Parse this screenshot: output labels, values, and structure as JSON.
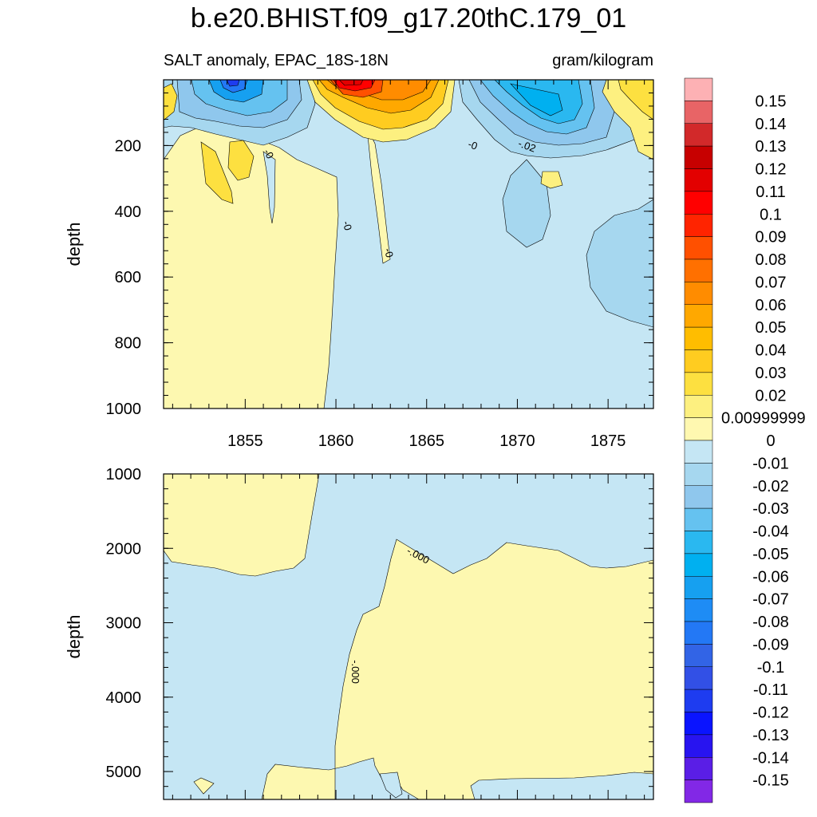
{
  "title": "b.e20.BHIST.f09_g17.20thC.179_01",
  "subtitle_left": "SALT anomaly, EPAC_18S-18N",
  "subtitle_right": "gram/kilogram",
  "chart_data": [
    {
      "type": "heatmap",
      "panel": "upper",
      "ylabel": "depth",
      "ylim": [
        0,
        1000
      ],
      "yreversed": true,
      "yticks": [
        200,
        400,
        600,
        800,
        1000
      ],
      "xlim": [
        1850.5,
        1877.5
      ],
      "xticks": [
        1855,
        1860,
        1865,
        1870,
        1875
      ],
      "contour_labels": [
        "-0",
        "-0",
        "-0",
        "-0",
        "-.02"
      ],
      "features": [
        {
          "kind": "negative-anomaly",
          "x_center": 1854.5,
          "depth_center": 30,
          "min_value": -0.12
        },
        {
          "kind": "positive-anomaly",
          "x_center": 1861.0,
          "depth_center": 30,
          "max_value": 0.11
        },
        {
          "kind": "negative-anomaly",
          "x_center": 1871.5,
          "depth_center": 100,
          "min_value": -0.06
        },
        {
          "kind": "positive-anomaly",
          "x_center": 1876.0,
          "depth_center": 60,
          "max_value": 0.03
        }
      ]
    },
    {
      "type": "heatmap",
      "panel": "lower",
      "ylabel": "depth",
      "ylim": [
        1000,
        5375
      ],
      "yreversed": true,
      "yticks": [
        1000,
        2000,
        3000,
        4000,
        5000
      ],
      "xlim": [
        1850.5,
        1877.5
      ],
      "xticks": [
        1855,
        1860,
        1865,
        1870,
        1875
      ],
      "contour_labels": [
        "-.000",
        "-.000"
      ]
    }
  ],
  "colorbar": {
    "labels": [
      "0.15",
      "0.14",
      "0.13",
      "0.12",
      "0.11",
      "0.1",
      "0.09",
      "0.08",
      "0.07",
      "0.06",
      "0.05",
      "0.04",
      "0.03",
      "0.02",
      "0.00999999",
      "0",
      "-0.01",
      "-0.02",
      "-0.03",
      "-0.04",
      "-0.05",
      "-0.06",
      "-0.07",
      "-0.08",
      "-0.09",
      "-0.1",
      "-0.11",
      "-0.12",
      "-0.13",
      "-0.14",
      "-0.15"
    ],
    "colors": [
      "#fdb1b4",
      "#e86466",
      "#d2292a",
      "#c70000",
      "#e30000",
      "#ff0000",
      "#ff2400",
      "#ff5000",
      "#ff7000",
      "#ff8c00",
      "#ffa800",
      "#ffbd00",
      "#ffcc20",
      "#fde040",
      "#fdf080",
      "#fff8b0",
      "#c5e6f4",
      "#a6d7ef",
      "#8fc7ed",
      "#65c2f0",
      "#2ab8f0",
      "#00b0f0",
      "#16a0f0",
      "#1e8cf5",
      "#2378f5",
      "#3264e6",
      "#3250e6",
      "#1e3cf0",
      "#0a14ff",
      "#2814f0",
      "#5a1ee6",
      "#8228e6"
    ]
  }
}
